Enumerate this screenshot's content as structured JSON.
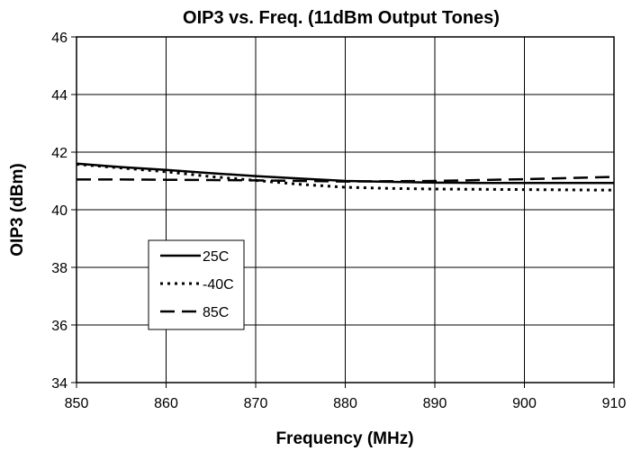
{
  "chart_data": {
    "type": "line",
    "title": "OIP3 vs. Freq. (11dBm Output Tones)",
    "xlabel": "Frequency (MHz)",
    "ylabel": "OIP3 (dBm)",
    "xlim": [
      850,
      910
    ],
    "ylim": [
      34,
      46
    ],
    "xticks": [
      850,
      860,
      870,
      880,
      890,
      900,
      910
    ],
    "yticks": [
      34,
      36,
      38,
      40,
      42,
      44,
      46
    ],
    "grid": true,
    "legend_position": "lower-left",
    "series": [
      {
        "name": "25C",
        "style": "solid",
        "color": "#000000",
        "x": [
          850,
          855,
          860,
          865,
          870,
          875,
          880,
          885,
          890,
          895,
          900,
          905,
          910
        ],
        "y": [
          41.6,
          41.48,
          41.38,
          41.27,
          41.17,
          41.08,
          41.0,
          40.97,
          40.94,
          40.93,
          40.93,
          40.93,
          40.93
        ]
      },
      {
        "name": "-40C",
        "style": "dotted",
        "color": "#000000",
        "x": [
          850,
          855,
          860,
          865,
          870,
          875,
          880,
          885,
          890,
          895,
          900,
          905,
          910
        ],
        "y": [
          41.58,
          41.45,
          41.32,
          41.15,
          41.02,
          40.88,
          40.78,
          40.74,
          40.72,
          40.71,
          40.7,
          40.69,
          40.68
        ]
      },
      {
        "name": "85C",
        "style": "dashed",
        "color": "#000000",
        "x": [
          850,
          855,
          860,
          865,
          870,
          875,
          880,
          885,
          890,
          895,
          900,
          905,
          910
        ],
        "y": [
          41.05,
          41.05,
          41.04,
          41.03,
          41.02,
          41.0,
          40.98,
          40.99,
          41.0,
          41.03,
          41.06,
          41.1,
          41.14
        ]
      }
    ]
  }
}
